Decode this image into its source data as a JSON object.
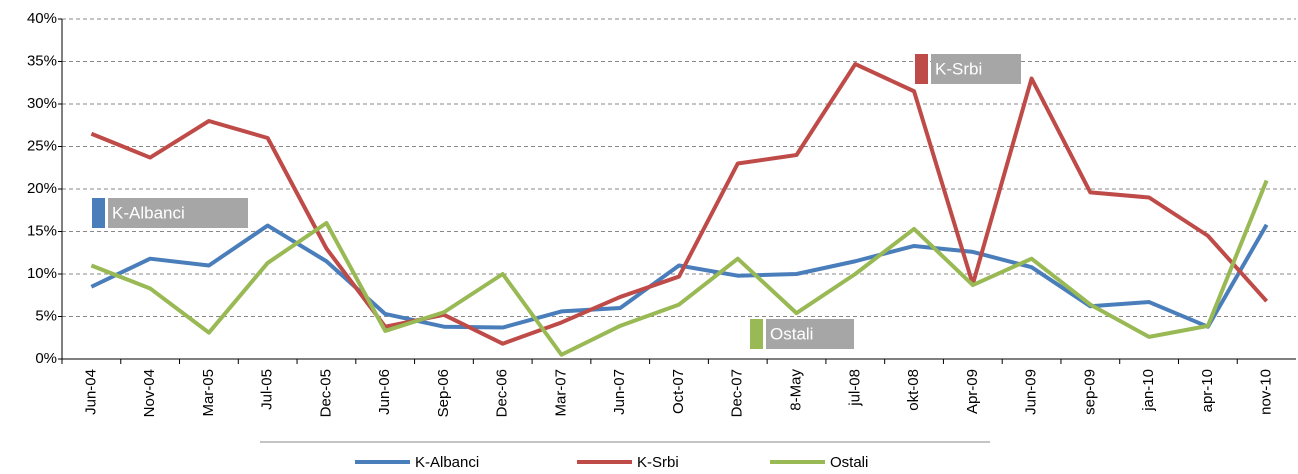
{
  "chart_data": {
    "type": "line",
    "categories": [
      "Jun-04",
      "Nov-04",
      "Mar-05",
      "Jul-05",
      "Dec-05",
      "Jun-06",
      "Sep-06",
      "Dec-06",
      "Mar-07",
      "Jun-07",
      "Oct-07",
      "Dec-07",
      "8-May",
      "jul-08",
      "okt-08",
      "Apr-09",
      "Jun-09",
      "sep-09",
      "jan-10",
      "apr-10",
      "nov-10"
    ],
    "series": [
      {
        "name": "K-Albanci",
        "color": "#4a7ebb",
        "values": [
          8.5,
          11.8,
          11,
          15.7,
          11.5,
          5.3,
          3.8,
          3.7,
          5.6,
          6,
          11,
          9.8,
          10,
          11.5,
          13.3,
          12.6,
          10.8,
          6.2,
          6.7,
          3.8,
          15.8
        ]
      },
      {
        "name": "K-Srbi",
        "color": "#be4b48",
        "values": [
          26.5,
          23.7,
          28,
          26,
          13,
          3.8,
          5.2,
          1.8,
          4.3,
          7.3,
          9.7,
          23,
          24,
          34.7,
          31.5,
          8.8,
          33,
          19.6,
          19,
          14.5,
          6.8
        ]
      },
      {
        "name": "Ostali",
        "color": "#98b954",
        "values": [
          11,
          8.3,
          3.1,
          11.3,
          16,
          3.3,
          5.5,
          10,
          0.5,
          3.9,
          6.4,
          11.8,
          5.4,
          10,
          15.3,
          8.7,
          11.8,
          6.4,
          2.6,
          3.9,
          21
        ]
      }
    ],
    "annotations": [
      {
        "text": "K-Albanci",
        "color": "#4a7ebb"
      },
      {
        "text": "K-Srbi",
        "color": "#be4b48"
      },
      {
        "text": "Ostali",
        "color": "#98b954"
      }
    ],
    "ylim": [
      0,
      40
    ],
    "yticks": [
      {
        "value": 0,
        "label": "0%"
      },
      {
        "value": 5,
        "label": "5%"
      },
      {
        "value": 10,
        "label": "10%"
      },
      {
        "value": 15,
        "label": "15%"
      },
      {
        "value": 20,
        "label": "20%"
      },
      {
        "value": 25,
        "label": "25%"
      },
      {
        "value": 30,
        "label": "30%"
      },
      {
        "value": 35,
        "label": "35%"
      },
      {
        "value": 40,
        "label": "40%"
      }
    ],
    "grid": true,
    "legend": "bottom"
  }
}
